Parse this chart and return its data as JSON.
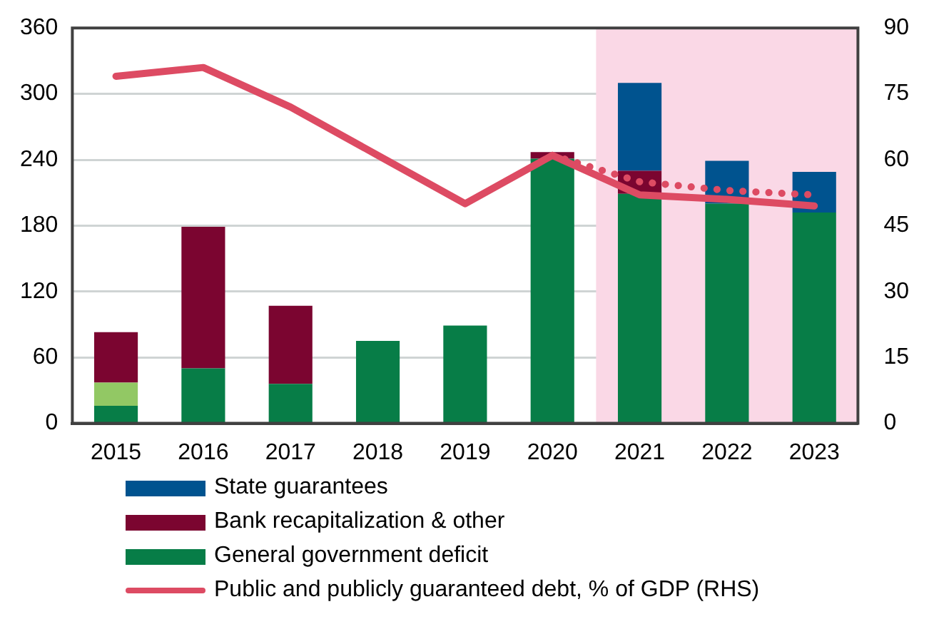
{
  "chart_data": {
    "type": "bar",
    "stacked": true,
    "categories": [
      "2015",
      "2016",
      "2017",
      "2018",
      "2019",
      "2020",
      "2021",
      "2022",
      "2023"
    ],
    "series": [
      {
        "name": "General government deficit",
        "color": "#077d47",
        "values": [
          16,
          50,
          36,
          75,
          89,
          241,
          209,
          200,
          192
        ]
      },
      {
        "color": "#92c864",
        "values": [
          21,
          null,
          null,
          null,
          null,
          null,
          null,
          null,
          null
        ]
      },
      {
        "name": "Bank recapitalization & other",
        "color": "#7b0530",
        "values": [
          46,
          129,
          71,
          null,
          null,
          6,
          21,
          null,
          null
        ]
      },
      {
        "name": "State guarantees",
        "color": "#00538f",
        "values": [
          null,
          null,
          null,
          null,
          null,
          null,
          80,
          39,
          37
        ]
      },
      {
        "name": "Public and publicly guaranteed debt, % of GDP (RHS)",
        "type": "line",
        "axis": "y2",
        "color": "#dd4b63",
        "line_style": "solid",
        "values": [
          79,
          81,
          72,
          61,
          50,
          61,
          52,
          51,
          49.5
        ]
      },
      {
        "type": "line",
        "axis": "y2",
        "color": "#dd4b63",
        "line_style": "dotted",
        "values": [
          null,
          null,
          null,
          null,
          null,
          61,
          55,
          53,
          52
        ]
      }
    ],
    "ylim": [
      0,
      360
    ],
    "yticks": [
      0,
      60,
      120,
      180,
      240,
      300,
      360
    ],
    "y2lim": [
      0,
      90
    ],
    "y2ticks": [
      0,
      15,
      30,
      45,
      60,
      75,
      90
    ],
    "bands": [
      {
        "axis": "x",
        "from": "2021",
        "to": "2023",
        "color": "#fad8e6"
      }
    ],
    "grid": "y",
    "legend": "bottom"
  }
}
